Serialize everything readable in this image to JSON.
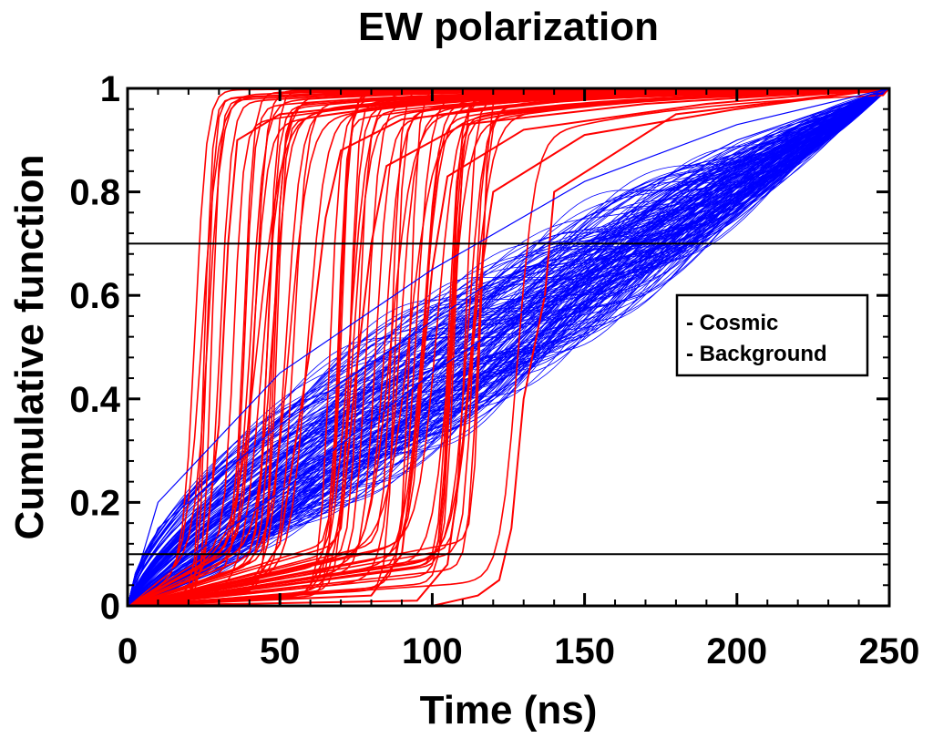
{
  "chart_data": {
    "type": "line",
    "title": "EW polarization",
    "xlabel": "Time (ns)",
    "ylabel": "Cumulative function",
    "xlim": [
      0,
      250
    ],
    "ylim": [
      0,
      1
    ],
    "x_ticks": [
      "0",
      "50",
      "100",
      "150",
      "200",
      "250"
    ],
    "y_ticks": [
      "0",
      "0.2",
      "0.4",
      "0.6",
      "0.8",
      "1"
    ],
    "x_tick_values": [
      0,
      50,
      100,
      150,
      200,
      250
    ],
    "y_tick_values": [
      0,
      0.2,
      0.4,
      0.6,
      0.8,
      1
    ],
    "grid": false,
    "legend_position": "right",
    "thresholds": [
      0.1,
      0.7
    ],
    "series": [
      {
        "name": "Cosmic",
        "legend_label": "- Cosmic",
        "color": "#ff0000",
        "description_values": {
          "x_at_0.1_range_ns": [
            20,
            125
          ],
          "x_at_0.7_range_ns": [
            33,
            138
          ],
          "x_at_0.9_range_ns": [
            38,
            140
          ]
        },
        "example_curves": [
          {
            "x": [
              0,
              20,
              25,
              30,
              33,
              36,
              50,
              100,
              150,
              250
            ],
            "y": [
              0,
              0.02,
              0.08,
              0.35,
              0.7,
              0.9,
              0.95,
              0.98,
              0.99,
              1
            ]
          },
          {
            "x": [
              0,
              40,
              50,
              60,
              65,
              70,
              90,
              150,
              250
            ],
            "y": [
              0,
              0.03,
              0.12,
              0.5,
              0.75,
              0.88,
              0.94,
              0.98,
              1
            ]
          },
          {
            "x": [
              0,
              60,
              70,
              75,
              80,
              85,
              110,
              170,
              250
            ],
            "y": [
              0,
              0.04,
              0.15,
              0.45,
              0.7,
              0.85,
              0.93,
              0.97,
              1
            ]
          },
          {
            "x": [
              0,
              80,
              90,
              95,
              100,
              105,
              130,
              190,
              250
            ],
            "y": [
              0,
              0.02,
              0.1,
              0.35,
              0.65,
              0.83,
              0.92,
              0.97,
              1
            ]
          },
          {
            "x": [
              0,
              95,
              105,
              110,
              115,
              120,
              150,
              200,
              250
            ],
            "y": [
              0,
              0.01,
              0.08,
              0.3,
              0.6,
              0.8,
              0.91,
              0.96,
              1
            ]
          },
          {
            "x": [
              0,
              100,
              115,
              122,
              126,
              130,
              137,
              140,
              180,
              250
            ],
            "y": [
              0,
              0.0,
              0.02,
              0.05,
              0.15,
              0.4,
              0.6,
              0.8,
              0.95,
              1
            ]
          }
        ]
      },
      {
        "name": "Background",
        "legend_label": "- Background",
        "color": "#0000ff",
        "description_values": {
          "typical_shape": "approximately linear rise from 0 at 0 ns to 1 at 250 ns",
          "y_at_50ns_range": [
            0.2,
            0.55
          ],
          "y_at_150ns_range": [
            0.6,
            0.88
          ]
        },
        "example_curves": [
          {
            "x": [
              0,
              10,
              50,
              100,
              150,
              200,
              250
            ],
            "y": [
              0,
              0.15,
              0.35,
              0.55,
              0.75,
              0.9,
              1
            ]
          },
          {
            "x": [
              0,
              10,
              50,
              100,
              150,
              200,
              250
            ],
            "y": [
              0,
              0.05,
              0.22,
              0.45,
              0.65,
              0.83,
              1
            ]
          },
          {
            "x": [
              0,
              10,
              50,
              100,
              150,
              200,
              250
            ],
            "y": [
              0,
              0.2,
              0.45,
              0.65,
              0.82,
              0.93,
              1
            ]
          }
        ]
      }
    ]
  }
}
